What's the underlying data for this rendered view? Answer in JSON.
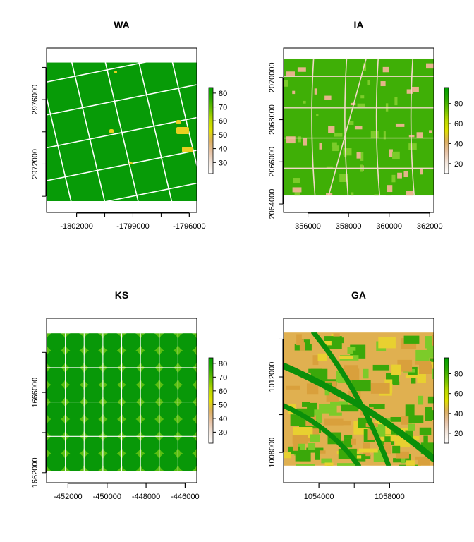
{
  "chart_data": [
    {
      "type": "heatmap",
      "title": "WA",
      "xlim": [
        -1803600,
        -1795600
      ],
      "ylim": [
        2969000,
        2979200
      ],
      "raster_extent": {
        "x": [
          -1803600,
          -1795600
        ],
        "y": [
          2969700,
          2978300
        ]
      },
      "xticks": [
        -1802000,
        -1799000,
        -1796000
      ],
      "xtick_labels": [
        "-1802000",
        "-1799000",
        "-1796000"
      ],
      "yticks": [
        2972000,
        2976000
      ],
      "ytick_labels": [
        "2972000",
        "2976000"
      ],
      "legend": {
        "placement": "right",
        "min": 22,
        "max": 84,
        "ticks": [
          30,
          40,
          50,
          60,
          70,
          80
        ],
        "tick_labels": [
          "30",
          "40",
          "50",
          "60",
          "70",
          "80"
        ]
      },
      "dominant_color": "#079b07",
      "road_angle_deg": -12
    },
    {
      "type": "heatmap",
      "title": "IA",
      "xlim": [
        354800,
        362200
      ],
      "ylim": [
        2063600,
        2071400
      ],
      "raster_extent": {
        "x": [
          354800,
          362200
        ],
        "y": [
          2064400,
          2070900
        ]
      },
      "xticks": [
        356000,
        358000,
        360000,
        362000
      ],
      "xtick_labels": [
        "356000",
        "358000",
        "360000",
        "362000"
      ],
      "yticks": [
        2064000,
        2066000,
        2068000,
        2070000
      ],
      "ytick_labels": [
        "2064000",
        "2066000",
        "2068000",
        "2070000"
      ],
      "legend": {
        "placement": "right",
        "min": 10,
        "max": 96,
        "ticks": [
          20,
          40,
          60,
          80
        ],
        "tick_labels": [
          "20",
          "40",
          "60",
          "80"
        ]
      },
      "dominant_color": "#3faf06",
      "road_angle_deg": 0
    },
    {
      "type": "heatmap",
      "title": "KS",
      "xlim": [
        -453100,
        -445400
      ],
      "ylim": [
        1661500,
        1669700
      ],
      "raster_extent": {
        "x": [
          -453100,
          -445400
        ],
        "y": [
          1662100,
          1668950
        ]
      },
      "xticks": [
        -452000,
        -450000,
        -448000,
        -446000
      ],
      "xtick_labels": [
        "-452000",
        "-450000",
        "-448000",
        "-446000"
      ],
      "yticks": [
        1662000,
        1666000
      ],
      "ytick_labels": [
        "1662000",
        "1666000"
      ],
      "legend": {
        "placement": "right",
        "min": 22,
        "max": 84,
        "ticks": [
          30,
          40,
          50,
          60,
          70,
          80
        ],
        "tick_labels": [
          "30",
          "40",
          "50",
          "60",
          "70",
          "80"
        ]
      },
      "dominant_color": "#099807",
      "road_angle_deg": 0
    },
    {
      "type": "heatmap",
      "title": "GA",
      "xlim": [
        1052000,
        1060500
      ],
      "ylim": [
        1006400,
        1015100
      ],
      "raster_extent": {
        "x": [
          1052000,
          1060500
        ],
        "y": [
          1007300,
          1014350
        ]
      },
      "xticks": [
        1054000,
        1058000
      ],
      "xtick_labels": [
        "1054000",
        "1058000"
      ],
      "yticks": [
        1008000,
        1012000
      ],
      "ytick_labels": [
        "1008000",
        "1012000"
      ],
      "legend": {
        "placement": "right",
        "min": 10,
        "max": 96,
        "ticks": [
          20,
          40,
          60,
          80
        ],
        "tick_labels": [
          "20",
          "40",
          "60",
          "80"
        ]
      },
      "dominant_color": "#e0b050",
      "road_angle_deg": 0
    }
  ],
  "colors": {
    "scale": [
      "#ffffff",
      "#f3e6dc",
      "#e7c3a6",
      "#ddb060",
      "#e0e000",
      "#b8d800",
      "#6bc000",
      "#2aa800",
      "#00a000"
    ],
    "road": "#ffffff",
    "frame": "#000000"
  }
}
